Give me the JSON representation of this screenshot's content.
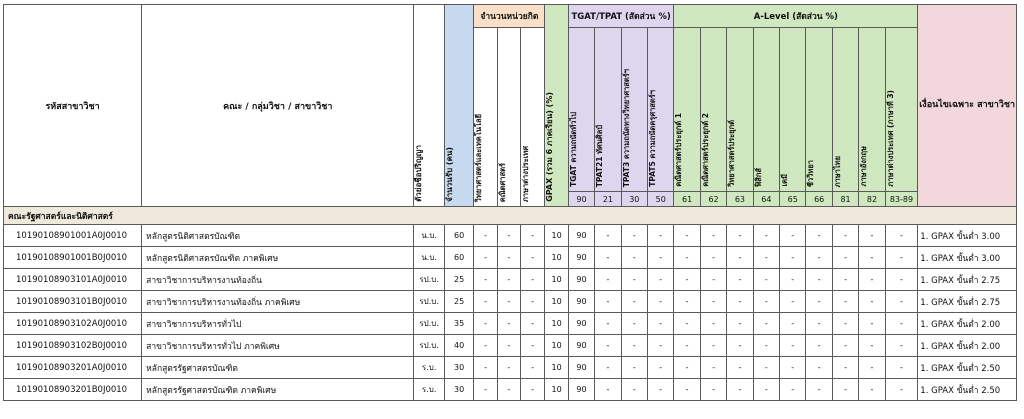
{
  "headers": {
    "code": "รหัสสาขาวิชา",
    "program": "คณะ / กลุ่มวิชา / สาขาวิชา",
    "degree_abbr": "ตัวย่อชื่อปริญญา",
    "seats": "จำนวนรับ (คน)",
    "credits_group": "จำนวนหน่วยกิต",
    "credits": [
      "วิทยาศาสตร์และเทคโนโลยี",
      "คณิตศาสตร์",
      "ภาษาต่างประเทศ"
    ],
    "gpax": "GPAX (รวม 6 ภาคเรียน) (%)",
    "tgat_group": "TGAT/TPAT (สัดส่วน %)",
    "tgat": [
      {
        "label": "TGAT  ความถนัดทั่วไป",
        "code": "90"
      },
      {
        "label": "TPAT21  ทัศนศิลป์",
        "code": "21"
      },
      {
        "label": "TPAT3  ความถนัดทางวิทยาศาสตร์ฯ",
        "code": "30"
      },
      {
        "label": "TPAT5  ความถนัดครุศาสตร์ฯ",
        "code": "50"
      }
    ],
    "alevel_group": "A-Level (สัดส่วน %)",
    "alevel": [
      {
        "label": "คณิตศาสตร์ประยุกต์ 1",
        "code": "61"
      },
      {
        "label": "คณิตศาสตร์ประยุกต์ 2",
        "code": "62"
      },
      {
        "label": "วิทยาศาสตร์ประยุกต์",
        "code": "63"
      },
      {
        "label": "ฟิสิกส์",
        "code": "64"
      },
      {
        "label": "เคมี",
        "code": "65"
      },
      {
        "label": "ชีววิทยา",
        "code": "66"
      },
      {
        "label": "ภาษาไทย",
        "code": "81"
      },
      {
        "label": "ภาษาอังกฤษ",
        "code": "82"
      },
      {
        "label": "ภาษาต่างประเทศ (ภาษาที่ 3)",
        "code": "83-89"
      }
    ],
    "special": "เงื่อนไขเฉพาะ สาขาวิชา"
  },
  "section_title": "คณะรัฐศาสตร์และนิติศาสตร์",
  "rows": [
    {
      "code": "10190108901001A0J0010",
      "name": "หลักสูตรนิติศาสตรบัณฑิต",
      "degree": "น.บ.",
      "seats": "60",
      "gpax": "10",
      "tgat": "90",
      "cond": "1. GPAX ขั้นต่ำ 3.00"
    },
    {
      "code": "10190108901001B0J0010",
      "name": "หลักสูตรนิติศาสตรบัณฑิต ภาคพิเศษ",
      "degree": "น.บ.",
      "seats": "60",
      "gpax": "10",
      "tgat": "90",
      "cond": "1. GPAX ขั้นต่ำ 3.00"
    },
    {
      "code": "10190108903101A0J0010",
      "name": "สาขาวิชาการบริหารงานท้องถิ่น",
      "degree": "รป.บ.",
      "seats": "25",
      "gpax": "10",
      "tgat": "90",
      "cond": "1. GPAX ขั้นต่ำ 2.75"
    },
    {
      "code": "10190108903101B0J0010",
      "name": "สาขาวิชาการบริหารงานท้องถิ่น ภาคพิเศษ",
      "degree": "รป.บ.",
      "seats": "25",
      "gpax": "10",
      "tgat": "90",
      "cond": "1. GPAX ขั้นต่ำ 2.75"
    },
    {
      "code": "10190108903102A0J0010",
      "name": "สาขาวิชาการบริหารทั่วไป",
      "degree": "รป.บ.",
      "seats": "35",
      "gpax": "10",
      "tgat": "90",
      "cond": "1. GPAX ขั้นต่ำ 2.00"
    },
    {
      "code": "10190108903102B0J0010",
      "name": "สาขาวิชาการบริหารทั่วไป ภาคพิเศษ",
      "degree": "รป.บ.",
      "seats": "40",
      "gpax": "10",
      "tgat": "90",
      "cond": "1. GPAX ขั้นต่ำ 2.00"
    },
    {
      "code": "10190108903201A0J0010",
      "name": "หลักสูตรรัฐศาสตรบัณฑิต",
      "degree": "ร.บ.",
      "seats": "30",
      "gpax": "10",
      "tgat": "90",
      "cond": "1. GPAX ขั้นต่ำ 2.50"
    },
    {
      "code": "10190108903201B0J0010",
      "name": "หลักสูตรรัฐศาสตรบัณฑิต ภาคพิเศษ",
      "degree": "ร.บ.",
      "seats": "30",
      "gpax": "10",
      "tgat": "90",
      "cond": "1. GPAX ขั้นต่ำ 2.50"
    }
  ],
  "dash": "-"
}
